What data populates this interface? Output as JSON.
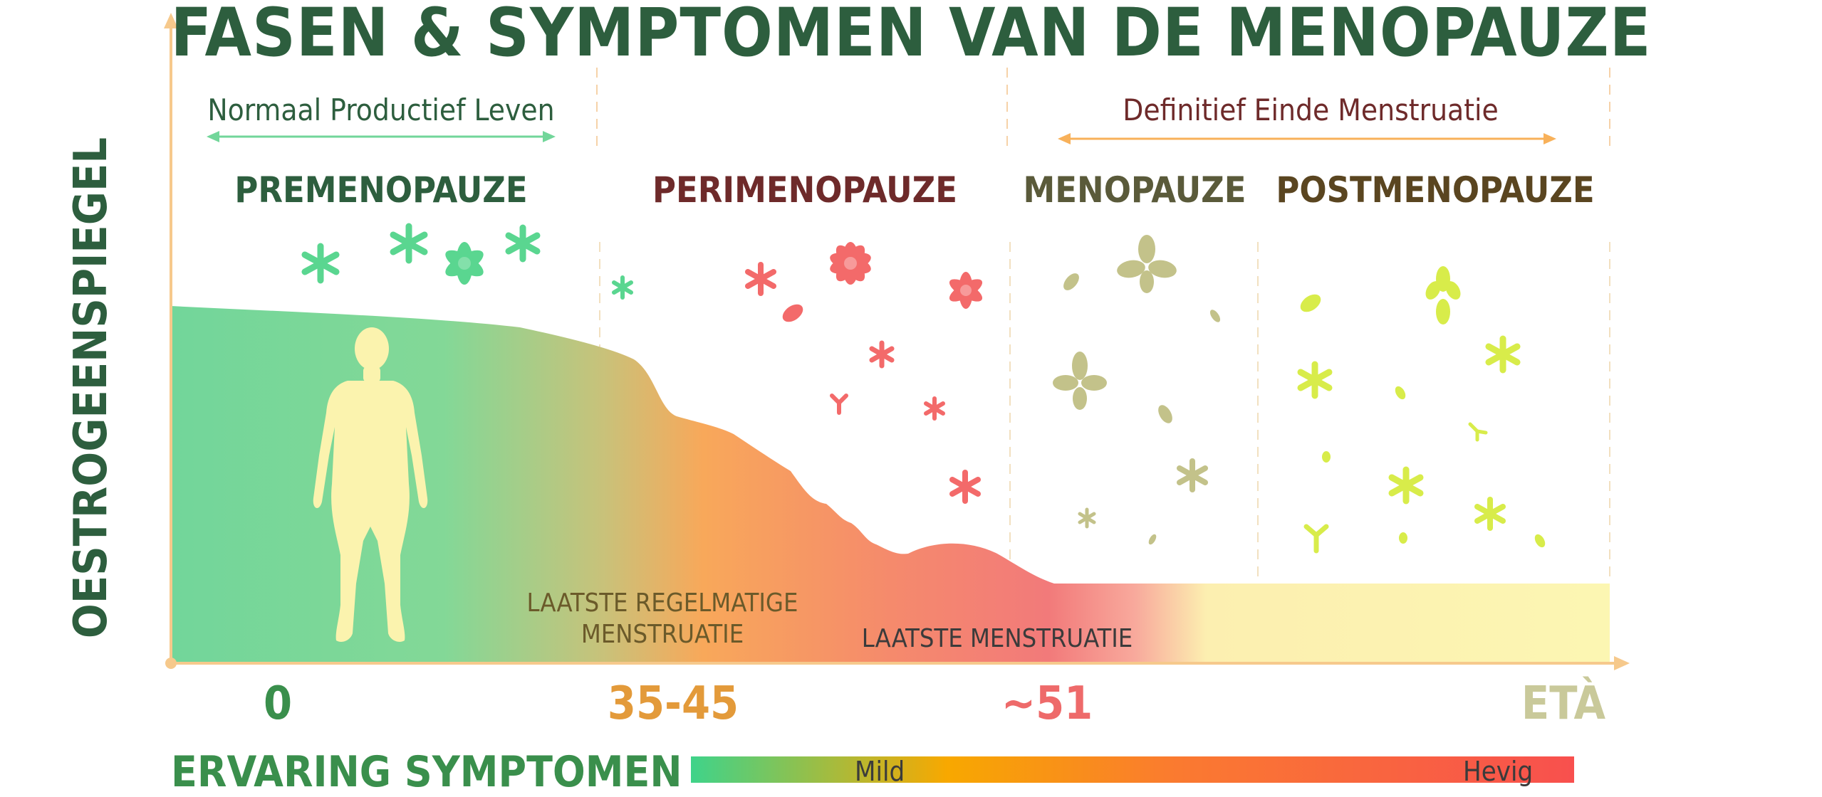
{
  "title": "FASEN & SYMPTOMEN VAN DE MENOPAUZE",
  "y_axis_label": "OESTROGEENSPIEGEL",
  "ranges": {
    "left": "Normaal Productief Leven",
    "right": "Definitief Einde Menstruatie"
  },
  "phases": [
    {
      "label": "PREMENOPAUZE",
      "color": "#2d5e3e"
    },
    {
      "label": "PERIMENOPAUZE",
      "color": "#6e2a2a"
    },
    {
      "label": "MENOPAUZE",
      "color": "#5a5a3a"
    },
    {
      "label": "POSTMENOPAUZE",
      "color": "#5a4520"
    }
  ],
  "annotations": {
    "last_regular": "LAATSTE REGELMATIGE\nMENSTRUATIE",
    "last": "LAATSTE MENSTRUATIE"
  },
  "ages": [
    {
      "label": "0",
      "color": "#3a8f4c"
    },
    {
      "label": "35-45",
      "color": "#e39a3a"
    },
    {
      "label": "~51",
      "color": "#ee6a6a"
    },
    {
      "label": "ETÀ",
      "color": "#c9c99a"
    }
  ],
  "symptoms": {
    "label": "ERVARING SYMPTOMEN",
    "mild": "Mild",
    "severe": "Hevig"
  },
  "colors": {
    "green": "#72d69a",
    "orange": "#f8a85a",
    "red": "#f27a7a",
    "yellow": "#fcf6b2",
    "axis": "#f6c98c"
  },
  "icons": [
    "woman-silhouette-icon",
    "flower-icon",
    "star-icon",
    "petal-icon"
  ]
}
